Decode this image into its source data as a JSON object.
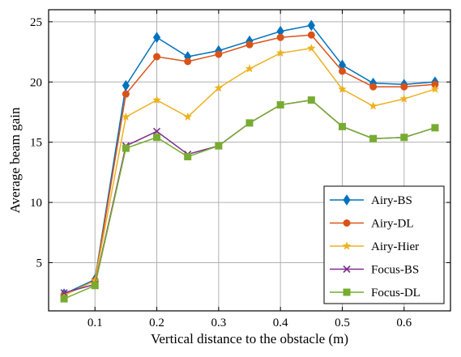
{
  "chart_data": {
    "type": "line",
    "title": "",
    "xlabel": "Vertical distance to the obstacle (m)",
    "ylabel": "Average beam gain",
    "xlim": [
      0.025,
      0.675
    ],
    "ylim": [
      1,
      26
    ],
    "x_ticks": [
      0.1,
      0.2,
      0.3,
      0.4,
      0.5,
      0.6
    ],
    "y_ticks": [
      5,
      10,
      15,
      20,
      25
    ],
    "grid": true,
    "legend_position": "lower-right",
    "x": [
      0.05,
      0.1,
      0.15,
      0.2,
      0.25,
      0.3,
      0.35,
      0.4,
      0.45,
      0.5,
      0.55,
      0.6,
      0.65
    ],
    "series": [
      {
        "name": "Airy-BS",
        "color": "#0072BD",
        "marker": "diamond",
        "values": [
          2.4,
          3.6,
          19.7,
          23.7,
          22.1,
          22.6,
          23.4,
          24.2,
          24.7,
          21.4,
          19.9,
          19.8,
          20.0
        ]
      },
      {
        "name": "Airy-DL",
        "color": "#D95319",
        "marker": "circle",
        "values": [
          2.3,
          3.5,
          19.0,
          22.1,
          21.7,
          22.3,
          23.1,
          23.7,
          23.9,
          20.9,
          19.6,
          19.6,
          19.8
        ]
      },
      {
        "name": "Airy-Hier",
        "color": "#EDB120",
        "marker": "star",
        "values": [
          2.3,
          3.5,
          17.1,
          18.5,
          17.1,
          19.5,
          21.1,
          22.4,
          22.8,
          19.4,
          18.0,
          18.6,
          19.4
        ]
      },
      {
        "name": "Focus-BS",
        "color": "#7E2F8E",
        "marker": "x",
        "values": [
          2.5,
          3.2,
          14.7,
          15.9,
          14.0,
          14.7,
          16.6,
          18.1,
          18.5,
          16.3,
          15.3,
          15.4,
          16.2
        ]
      },
      {
        "name": "Focus-DL",
        "color": "#77AC30",
        "marker": "square",
        "values": [
          2.0,
          3.1,
          14.5,
          15.4,
          13.8,
          14.7,
          16.6,
          18.1,
          18.5,
          16.3,
          15.3,
          15.4,
          16.2
        ]
      }
    ]
  }
}
